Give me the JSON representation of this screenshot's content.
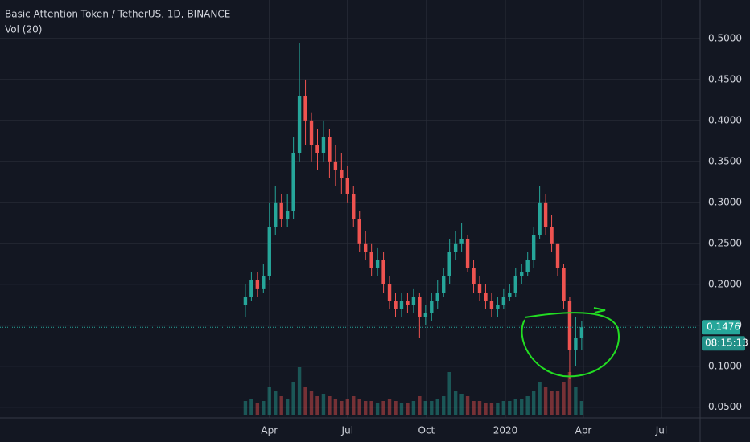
{
  "chart_data": {
    "type": "candlestick",
    "title": "Basic Attention Token / TetherUS, 1D, BINANCE",
    "indicator": "Vol (20)",
    "countdown": "08:15:13",
    "up_color": "#26a69a",
    "down_color": "#ef5350",
    "annotation_color": "#22dd22",
    "grid": true,
    "xlim": [
      "2018-05-22",
      "2020-08-15"
    ],
    "xticks": [
      {
        "value": "2019-04-01",
        "label": "Apr"
      },
      {
        "value": "2019-07-01",
        "label": "Jul"
      },
      {
        "value": "2019-10-01",
        "label": "Oct"
      },
      {
        "value": "2020-01-01",
        "label": "2020"
      },
      {
        "value": "2020-04-01",
        "label": "Apr"
      },
      {
        "value": "2020-07-01",
        "label": "Jul"
      }
    ],
    "ylim": [
      0.037,
      0.547
    ],
    "yticks": [
      {
        "value": 0.05,
        "label": "0.0500"
      },
      {
        "value": 0.1,
        "label": "0.1000"
      },
      {
        "value": 0.15,
        "label": "0.1500"
      },
      {
        "value": 0.2,
        "label": "0.2000"
      },
      {
        "value": 0.25,
        "label": "0.2500"
      },
      {
        "value": 0.3,
        "label": "0.3000"
      },
      {
        "value": 0.35,
        "label": "0.3500"
      },
      {
        "value": 0.4,
        "label": "0.4000"
      },
      {
        "value": 0.45,
        "label": "0.4500"
      },
      {
        "value": 0.5,
        "label": "0.5000"
      }
    ],
    "x": [
      "2019-03-04",
      "2019-03-11",
      "2019-03-18",
      "2019-03-25",
      "2019-04-01",
      "2019-04-08",
      "2019-04-15",
      "2019-04-22",
      "2019-04-29",
      "2019-05-06",
      "2019-05-13",
      "2019-05-20",
      "2019-05-27",
      "2019-06-03",
      "2019-06-10",
      "2019-06-17",
      "2019-06-24",
      "2019-07-01",
      "2019-07-08",
      "2019-07-15",
      "2019-07-22",
      "2019-07-29",
      "2019-08-05",
      "2019-08-12",
      "2019-08-19",
      "2019-08-26",
      "2019-09-02",
      "2019-09-09",
      "2019-09-16",
      "2019-09-23",
      "2019-09-30",
      "2019-10-07",
      "2019-10-14",
      "2019-10-21",
      "2019-10-28",
      "2019-11-04",
      "2019-11-11",
      "2019-11-18",
      "2019-11-25",
      "2019-12-02",
      "2019-12-09",
      "2019-12-16",
      "2019-12-23",
      "2019-12-30",
      "2020-01-06",
      "2020-01-13",
      "2020-01-20",
      "2020-01-27",
      "2020-02-03",
      "2020-02-10",
      "2020-02-17",
      "2020-02-24",
      "2020-03-02",
      "2020-03-09",
      "2020-03-16",
      "2020-03-23",
      "2020-03-30"
    ],
    "open": [
      0.175,
      0.185,
      0.205,
      0.195,
      0.21,
      0.27,
      0.3,
      0.28,
      0.29,
      0.36,
      0.43,
      0.4,
      0.37,
      0.36,
      0.38,
      0.35,
      0.34,
      0.33,
      0.31,
      0.28,
      0.25,
      0.24,
      0.22,
      0.23,
      0.2,
      0.18,
      0.17,
      0.18,
      0.175,
      0.185,
      0.16,
      0.165,
      0.18,
      0.19,
      0.21,
      0.24,
      0.25,
      0.255,
      0.22,
      0.2,
      0.19,
      0.18,
      0.17,
      0.175,
      0.185,
      0.19,
      0.21,
      0.215,
      0.23,
      0.26,
      0.3,
      0.27,
      0.25,
      0.22,
      0.18,
      0.12,
      0.135
    ],
    "high": [
      0.2,
      0.215,
      0.215,
      0.225,
      0.3,
      0.32,
      0.31,
      0.31,
      0.38,
      0.495,
      0.45,
      0.41,
      0.39,
      0.4,
      0.39,
      0.37,
      0.36,
      0.345,
      0.32,
      0.29,
      0.265,
      0.25,
      0.245,
      0.24,
      0.21,
      0.19,
      0.19,
      0.19,
      0.195,
      0.19,
      0.175,
      0.19,
      0.205,
      0.22,
      0.255,
      0.265,
      0.275,
      0.26,
      0.23,
      0.21,
      0.2,
      0.19,
      0.185,
      0.195,
      0.2,
      0.22,
      0.225,
      0.24,
      0.27,
      0.32,
      0.31,
      0.285,
      0.25,
      0.225,
      0.185,
      0.16,
      0.155
    ],
    "low": [
      0.16,
      0.18,
      0.185,
      0.19,
      0.205,
      0.26,
      0.27,
      0.27,
      0.28,
      0.35,
      0.37,
      0.35,
      0.34,
      0.35,
      0.33,
      0.32,
      0.31,
      0.3,
      0.27,
      0.24,
      0.23,
      0.21,
      0.21,
      0.19,
      0.17,
      0.16,
      0.16,
      0.165,
      0.165,
      0.135,
      0.15,
      0.155,
      0.17,
      0.185,
      0.2,
      0.23,
      0.24,
      0.215,
      0.19,
      0.18,
      0.17,
      0.16,
      0.16,
      0.17,
      0.18,
      0.185,
      0.2,
      0.21,
      0.22,
      0.255,
      0.26,
      0.24,
      0.21,
      0.17,
      0.085,
      0.1,
      0.12
    ],
    "close": [
      0.185,
      0.205,
      0.195,
      0.21,
      0.27,
      0.3,
      0.28,
      0.29,
      0.36,
      0.43,
      0.4,
      0.37,
      0.36,
      0.38,
      0.35,
      0.34,
      0.33,
      0.31,
      0.28,
      0.25,
      0.24,
      0.22,
      0.23,
      0.2,
      0.18,
      0.17,
      0.18,
      0.175,
      0.185,
      0.16,
      0.165,
      0.18,
      0.19,
      0.21,
      0.24,
      0.25,
      0.255,
      0.22,
      0.2,
      0.19,
      0.18,
      0.17,
      0.175,
      0.185,
      0.19,
      0.21,
      0.215,
      0.23,
      0.26,
      0.3,
      0.27,
      0.25,
      0.22,
      0.18,
      0.12,
      0.135,
      0.1476
    ],
    "volume": [
      3,
      3.5,
      2.5,
      3,
      6,
      5,
      4,
      3.5,
      7,
      10,
      6,
      5,
      4,
      4.5,
      4,
      3.5,
      3,
      3.5,
      4,
      3.5,
      3,
      3,
      2.5,
      3,
      3.5,
      3,
      2.5,
      2.5,
      3,
      4,
      3,
      3,
      3.5,
      4,
      9,
      5,
      4.5,
      4,
      3,
      3,
      2.5,
      2.5,
      2.5,
      3,
      3,
      3.5,
      3.5,
      4,
      5,
      7,
      6,
      5,
      5,
      7,
      9,
      6,
      3
    ]
  }
}
